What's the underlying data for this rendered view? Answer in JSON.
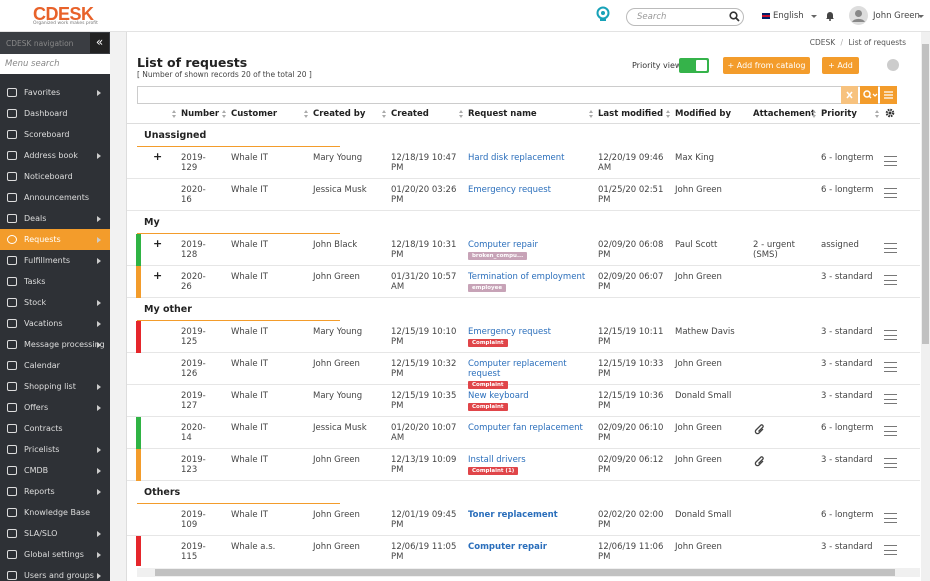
{
  "header": {
    "logo": "CDESK",
    "tagline": "Organized work makes profit",
    "search_placeholder": "Search",
    "language": "English",
    "user": "John Green"
  },
  "sidebar": {
    "title": "CDESK navigation",
    "collapse": "«",
    "search_placeholder": "Menu search",
    "items": [
      {
        "label": "Favorites",
        "submenu": true
      },
      {
        "label": "Dashboard"
      },
      {
        "label": "Scoreboard"
      },
      {
        "label": "Address book",
        "submenu": true
      },
      {
        "label": "Noticeboard"
      },
      {
        "label": "Announcements"
      },
      {
        "label": "Deals",
        "submenu": true
      },
      {
        "label": "Requests",
        "submenu": true,
        "active": true
      },
      {
        "label": "Fulfillments",
        "submenu": true
      },
      {
        "label": "Tasks"
      },
      {
        "label": "Stock",
        "submenu": true
      },
      {
        "label": "Vacations",
        "submenu": true
      },
      {
        "label": "Message processing",
        "submenu": true
      },
      {
        "label": "Calendar"
      },
      {
        "label": "Shopping list",
        "submenu": true
      },
      {
        "label": "Offers",
        "submenu": true
      },
      {
        "label": "Contracts"
      },
      {
        "label": "Pricelists",
        "submenu": true
      },
      {
        "label": "CMDB",
        "submenu": true
      },
      {
        "label": "Reports",
        "submenu": true
      },
      {
        "label": "Knowledge Base"
      },
      {
        "label": "SLA/SLO",
        "submenu": true
      },
      {
        "label": "Global settings",
        "submenu": true
      },
      {
        "label": "Users and groups",
        "submenu": true
      }
    ]
  },
  "breadcrumb": {
    "items": [
      "CDESK",
      "List of requests"
    ],
    "separator": "/"
  },
  "page": {
    "title": "List of requests",
    "subtitle": "[ Number of shown records 20 of the total 20 ]",
    "priority_view": "Priority view",
    "add_from_catalog": "+ Add from catalog",
    "add": "+ Add"
  },
  "table": {
    "columns": [
      {
        "label": "Number",
        "sort": true
      },
      {
        "label": "Customer",
        "sort": true
      },
      {
        "label": "Created by",
        "sort": true
      },
      {
        "label": "Created",
        "sort": true
      },
      {
        "label": "Request name",
        "sort": true
      },
      {
        "label": "Last modified",
        "sort": true
      },
      {
        "label": "Modified by",
        "sort": true
      },
      {
        "label": "Attachement"
      },
      {
        "label": "Priority",
        "sort": true
      }
    ],
    "groups": [
      {
        "name": "Unassigned",
        "rows": [
          {
            "expand": "+",
            "number": "2019-129",
            "customer": "Whale IT",
            "created_by": "Mary Young",
            "created": "12/18/19 10:47 PM",
            "request": "Hard disk replacement",
            "last_modified": "12/20/19 09:46 AM",
            "modified_by": "Max King",
            "priority": "6 - longterm"
          },
          {
            "number": "2020-16",
            "customer": "Whale IT",
            "created_by": "Jessica Musk",
            "created": "01/20/20 03:26 PM",
            "request": "Emergency request",
            "last_modified": "01/25/20 02:51 PM",
            "modified_by": "John Green",
            "priority": "6 - longterm"
          }
        ]
      },
      {
        "name": "My",
        "rows": [
          {
            "bar": "#2fb344",
            "expand": "+",
            "number": "2019-128",
            "customer": "Whale IT",
            "created_by": "John Black",
            "created": "12/18/19 10:31 PM",
            "request": "Computer repair",
            "tag": "broken_compu...",
            "tag_color": "#c7a3b7",
            "last_modified": "02/09/20 06:08 PM",
            "modified_by": "Paul Scott",
            "attachment": "2 - urgent (SMS)",
            "priority": "assigned"
          },
          {
            "bar": "#f39c2b",
            "expand": "+",
            "number": "2020-26",
            "customer": "Whale IT",
            "created_by": "John Green",
            "created": "01/31/20 10:57 AM",
            "request": "Termination of employment",
            "tag": "employee",
            "tag_color": "#c7a3b7",
            "last_modified": "02/09/20 06:07 PM",
            "modified_by": "John Green",
            "priority": "3 - standard"
          }
        ]
      },
      {
        "name": "My other",
        "rows": [
          {
            "bar": "#e5262b",
            "number": "2019-125",
            "customer": "Whale IT",
            "created_by": "Mary Young",
            "created": "12/15/19 10:10 PM",
            "request": "Emergency request",
            "tag": "Complaint",
            "tag_color": "#e04549",
            "last_modified": "12/15/19 10:11 PM",
            "modified_by": "Mathew Davis",
            "priority": "3 - standard"
          },
          {
            "number": "2019-126",
            "customer": "Whale IT",
            "created_by": "John Green",
            "created": "12/15/19 10:32 PM",
            "request": "Computer replacement request",
            "tag": "Complaint",
            "tag_color": "#e04549",
            "last_modified": "12/15/19 10:33 PM",
            "modified_by": "John Green",
            "priority": "3 - standard"
          },
          {
            "number": "2019-127",
            "customer": "Whale IT",
            "created_by": "Mary Young",
            "created": "12/15/19 10:35 PM",
            "request": "New keyboard",
            "tag": "Complaint",
            "tag_color": "#e04549",
            "last_modified": "12/15/19 10:36 PM",
            "modified_by": "Donald Small",
            "priority": "3 - standard"
          },
          {
            "bar": "#2fb344",
            "number": "2020-14",
            "customer": "Whale IT",
            "created_by": "Jessica Musk",
            "created": "01/20/20 10:07 AM",
            "request": "Computer fan replacement",
            "last_modified": "02/09/20 06:10 PM",
            "modified_by": "John Green",
            "attachment_icon": true,
            "priority": "6 - longterm"
          },
          {
            "bar": "#f39c2b",
            "number": "2019-123",
            "customer": "Whale IT",
            "created_by": "John Green",
            "created": "12/13/19 10:09 PM",
            "request": "Install drivers",
            "tag": "Complaint (1)",
            "tag_color": "#e04549",
            "last_modified": "02/09/20 06:12 PM",
            "modified_by": "John Green",
            "attachment_icon": true,
            "priority": "3 - standard"
          }
        ]
      },
      {
        "name": "Others",
        "rows": [
          {
            "number": "2019-109",
            "customer": "Whale IT",
            "created_by": "John Green",
            "created": "12/01/19 09:45 PM",
            "request": "Toner replacement",
            "request_bold": true,
            "last_modified": "02/02/20 02:00 PM",
            "modified_by": "Donald Small",
            "priority": "6 - longterm"
          },
          {
            "bar": "#e5262b",
            "number": "2019-115",
            "customer": "Whale a.s.",
            "created_by": "John Green",
            "created": "12/06/19 11:05 PM",
            "request": "Computer repair",
            "request_bold": true,
            "last_modified": "12/06/19 11:06 PM",
            "modified_by": "John Green",
            "priority": "3 - standard"
          }
        ]
      }
    ]
  }
}
